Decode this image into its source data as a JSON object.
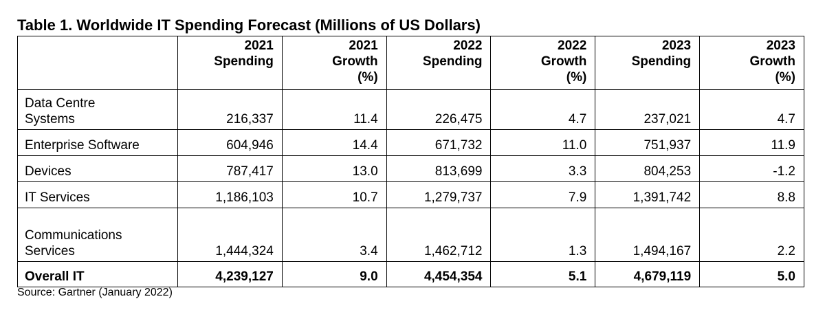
{
  "title": "Table 1. Worldwide IT Spending Forecast (Millions of US Dollars)",
  "table": {
    "header": [
      [
        "2021",
        "Spending"
      ],
      [
        "2021",
        "Growth",
        "(%)"
      ],
      [
        "2022",
        "Spending"
      ],
      [
        "2022",
        "Growth",
        "(%)"
      ],
      [
        "2023",
        "Spending"
      ],
      [
        "2023",
        "Growth",
        "(%)"
      ]
    ],
    "rows": [
      {
        "label": [
          "Data Centre",
          "Systems"
        ],
        "cells": [
          "216,337",
          "11.4",
          "226,475",
          "4.7",
          "237,021",
          "4.7"
        ]
      },
      {
        "label": [
          "Enterprise Software"
        ],
        "cells": [
          "604,946",
          "14.4",
          "671,732",
          "11.0",
          "751,937",
          "11.9"
        ]
      },
      {
        "label": [
          "Devices"
        ],
        "cells": [
          "787,417",
          "13.0",
          "813,699",
          "3.3",
          "804,253",
          "-1.2"
        ]
      },
      {
        "label": [
          "IT Services"
        ],
        "cells": [
          "1,186,103",
          "10.7",
          "1,279,737",
          "7.9",
          "1,391,742",
          "8.8"
        ]
      },
      {
        "label": [
          "Communications",
          "Services"
        ],
        "cells": [
          "1,444,324",
          "3.4",
          "1,462,712",
          "1.3",
          "1,494,167",
          "2.2"
        ]
      },
      {
        "label": [
          "Overall IT"
        ],
        "cells": [
          "4,239,127",
          "9.0",
          "4,454,354",
          "5.1",
          "4,679,119",
          "5.0"
        ],
        "bold": true
      }
    ]
  },
  "source": "Source: Gartner (January 2022)"
}
